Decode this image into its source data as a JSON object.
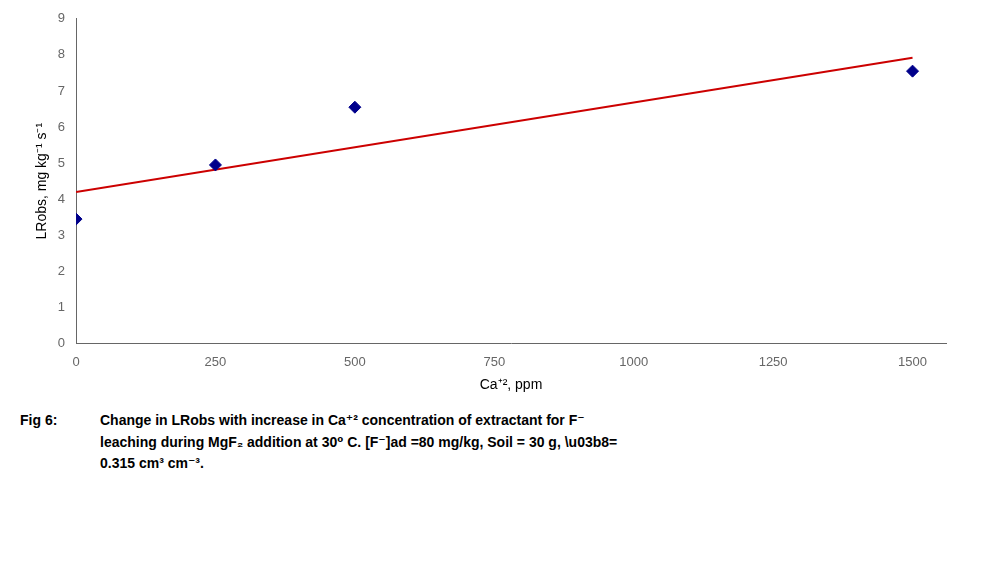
{
  "chart_data": {
    "type": "scatter",
    "x_label": "Ca⁺², ppm",
    "y_label": "LRobs, mg kg⁻¹ s⁻¹",
    "series": [
      {
        "type": "scatter",
        "x": [
          0,
          250,
          500,
          1500
        ],
        "values": [
          3.45,
          4.95,
          6.55,
          7.55
        ],
        "color": "#00008B",
        "marker": "diamond"
      },
      {
        "type": "line",
        "x": [
          0,
          1500
        ],
        "values": [
          4.2,
          7.92
        ],
        "color": "#CC0000",
        "line_style": "solid"
      }
    ],
    "xlim": [
      0,
      1560
    ],
    "ylim": [
      0,
      9
    ],
    "xticks": [
      0,
      250,
      500,
      750,
      1000,
      1250,
      1500
    ],
    "yticks": [
      0,
      1,
      2,
      3,
      4,
      5,
      6,
      7,
      8,
      9
    ],
    "grid": false,
    "annotations": [
      "Fig 6:",
      "Change in LRobs with increase in Ca⁺² concentration of extractant for F⁻",
      "leaching during MgF₂ addition at 30⁰ C.  [F⁻]ad =80 mg/kg, Soil = 30 g, \\u03b8=",
      "0.315 cm³ cm⁻³."
    ]
  }
}
